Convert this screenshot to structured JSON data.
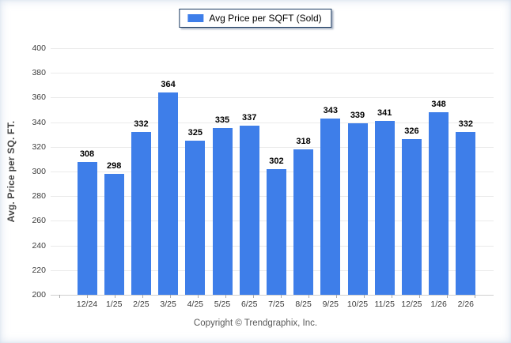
{
  "legend": {
    "label": "Avg Price per SQFT (Sold)"
  },
  "y_axis": {
    "title": "Avg. Price per SQ. FT."
  },
  "footer": {
    "text": "Copyright © Trendgraphix, Inc."
  },
  "colors": {
    "bar": "#3e7ee9",
    "gridline": "#eaeaea",
    "baseline": "#cfcfcf",
    "tick_text": "#3c3c3c",
    "value_label": "#000000",
    "legend_border": "#17375e",
    "footer_text": "#595959"
  },
  "chart_data": {
    "type": "bar",
    "title": "",
    "xlabel": "",
    "ylabel": "Avg. Price per SQ. FT.",
    "categories": [
      "12/24",
      "1/25",
      "2/25",
      "3/25",
      "4/25",
      "5/25",
      "6/25",
      "7/25",
      "8/25",
      "9/25",
      "10/25",
      "11/25",
      "12/25",
      "1/26",
      "2/26"
    ],
    "series": [
      {
        "name": "Avg Price per SQFT (Sold)",
        "values": [
          308,
          298,
          332,
          364,
          325,
          335,
          337,
          302,
          318,
          343,
          339,
          341,
          326,
          348,
          332
        ]
      }
    ],
    "ylim": [
      200,
      400
    ],
    "ytick_step": 20,
    "grid": true,
    "value_labels": true,
    "legend_position": "top-center"
  }
}
